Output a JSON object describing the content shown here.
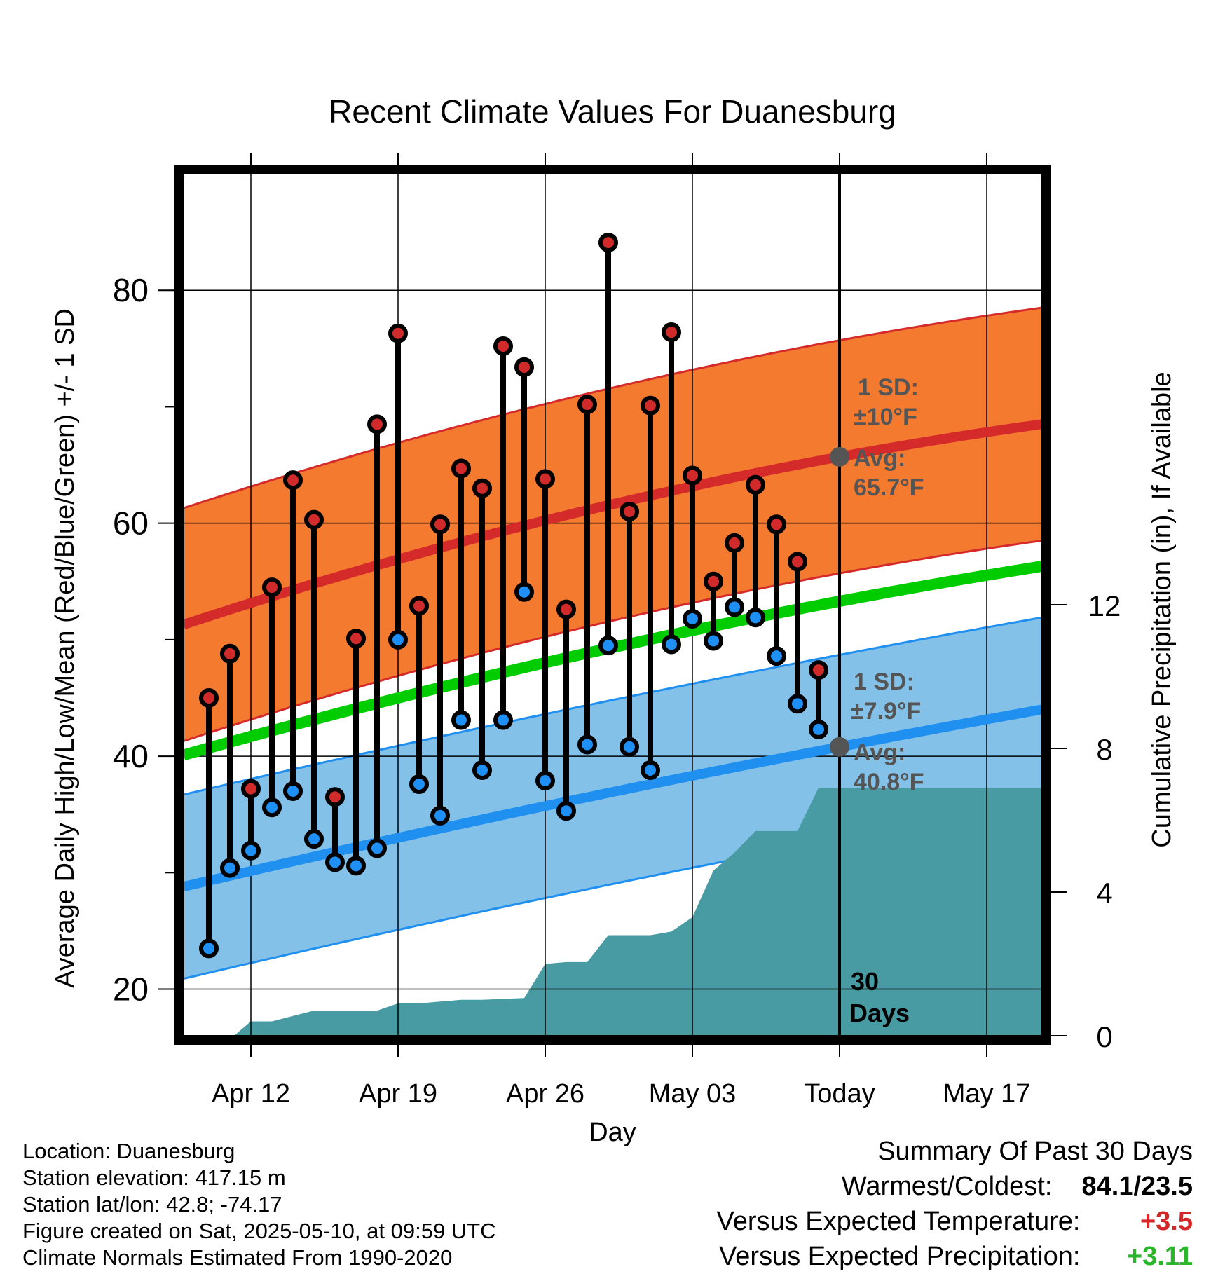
{
  "title": "Recent Climate Values For Duanesburg",
  "chart_data": {
    "type": "line",
    "title": "Recent Climate Values For Duanesburg",
    "xlabel": "Day",
    "ylabel_left": "Average Daily High/Low/Mean (Red/Blue/Green) +/- 1 SD",
    "ylabel_right": "Cumulative Precipitation (in), If Available",
    "y_left_range": [
      16,
      90
    ],
    "y_left_ticks": [
      "20",
      "40",
      "60",
      "80"
    ],
    "y_right_range": [
      0,
      24
    ],
    "y_right_ticks": [
      "0",
      "4",
      "8",
      "12"
    ],
    "x_ticks": [
      "Apr 12",
      "Apr 19",
      "Apr 26",
      "May 03",
      "Today",
      "May 17"
    ],
    "x_range_days_from_apr_12": [
      -3.2,
      37.6
    ],
    "x_tick_positions": [
      0,
      7,
      14,
      21,
      28,
      35
    ],
    "highs": [
      45.0,
      48.8,
      37.2,
      54.5,
      63.7,
      60.3,
      36.5,
      50.1,
      68.5,
      76.3,
      52.9,
      59.9,
      64.7,
      63.0,
      75.2,
      73.4,
      63.8,
      52.6,
      70.2,
      84.1,
      61.0,
      70.1,
      76.4,
      64.1,
      55.0,
      58.3,
      63.3,
      59.9,
      56.7,
      47.4
    ],
    "lows": [
      23.5,
      30.4,
      31.9,
      35.6,
      37.0,
      32.9,
      30.9,
      30.6,
      32.1,
      50.0,
      37.6,
      34.9,
      43.1,
      38.8,
      43.1,
      54.1,
      37.9,
      35.3,
      41.0,
      49.5,
      40.8,
      38.8,
      49.6,
      51.8,
      49.9,
      52.8,
      51.9,
      48.6,
      44.5,
      42.3
    ],
    "obs_days_from_apr_12": [
      -2,
      -1,
      0,
      1,
      2,
      3,
      4,
      5,
      6,
      7,
      8,
      9,
      10,
      11,
      12,
      13,
      14,
      15,
      16,
      17,
      18,
      19,
      20,
      21,
      22,
      23,
      24,
      25,
      26,
      27
    ],
    "normal_high": {
      "start": 51.3,
      "today": 65.7,
      "end": 68.5
    },
    "normal_low": {
      "start": 28.8,
      "today": 40.8,
      "end": 44.0
    },
    "normal_mean": {
      "start": 40.1,
      "today": 53.3,
      "end": 56.3
    },
    "sd_high": 10.0,
    "sd_low": 7.9,
    "precip_x": [
      -3.2,
      -0.8,
      0,
      1,
      2,
      3,
      5,
      6,
      7,
      8,
      9,
      10,
      11,
      13,
      14,
      15,
      16,
      17,
      18,
      19,
      20,
      21,
      22,
      23,
      24,
      25,
      26,
      27,
      28,
      37.6
    ],
    "precip_cum": [
      0,
      0,
      0.4,
      0.4,
      0.55,
      0.7,
      0.7,
      0.7,
      0.9,
      0.9,
      0.95,
      1.0,
      1.0,
      1.05,
      2.0,
      2.05,
      2.05,
      2.8,
      2.8,
      2.8,
      2.9,
      3.3,
      4.6,
      5.1,
      5.7,
      5.7,
      5.7,
      6.9,
      6.9,
      6.9
    ],
    "today_label_1": "30",
    "today_label_2": "Days",
    "high_sd_label": "1 SD:",
    "high_sd_value": "±10°F",
    "high_avg_label": "Avg:",
    "high_avg_value": "65.7°F",
    "low_sd_label": "1 SD:",
    "low_sd_value": "±7.9°F",
    "low_avg_label": "Avg:",
    "low_avg_value": "40.8°F"
  },
  "station_info": {
    "location": "Location: Duanesburg",
    "elevation": "Station elevation: 417.15 m",
    "latlon": "Station lat/lon: 42.8; -74.17",
    "created": "Figure created on Sat, 2025-05-10, at 09:59 UTC",
    "normals": "Climate Normals Estimated From 1990-2020"
  },
  "summary": {
    "heading": "Summary Of Past 30 Days",
    "warm_cold_label": "Warmest/Coldest:",
    "warm_cold_value": "84.1/23.5",
    "temp_label": "Versus Expected Temperature:",
    "temp_value": "+3.5",
    "precip_label": "Versus Expected Precipitation:",
    "precip_value": "+3.11"
  },
  "colors": {
    "high_band": "#f47a30",
    "high_line": "#d42a2a",
    "low_band": "#84c1e8",
    "low_line": "#1f8ff0",
    "mean_line": "#00cc00",
    "precip_fill": "#489ba3",
    "high_marker": "#d12a2a",
    "low_marker": "#1e90f5",
    "avg_marker": "#555555",
    "annotation_text": "#555555"
  }
}
